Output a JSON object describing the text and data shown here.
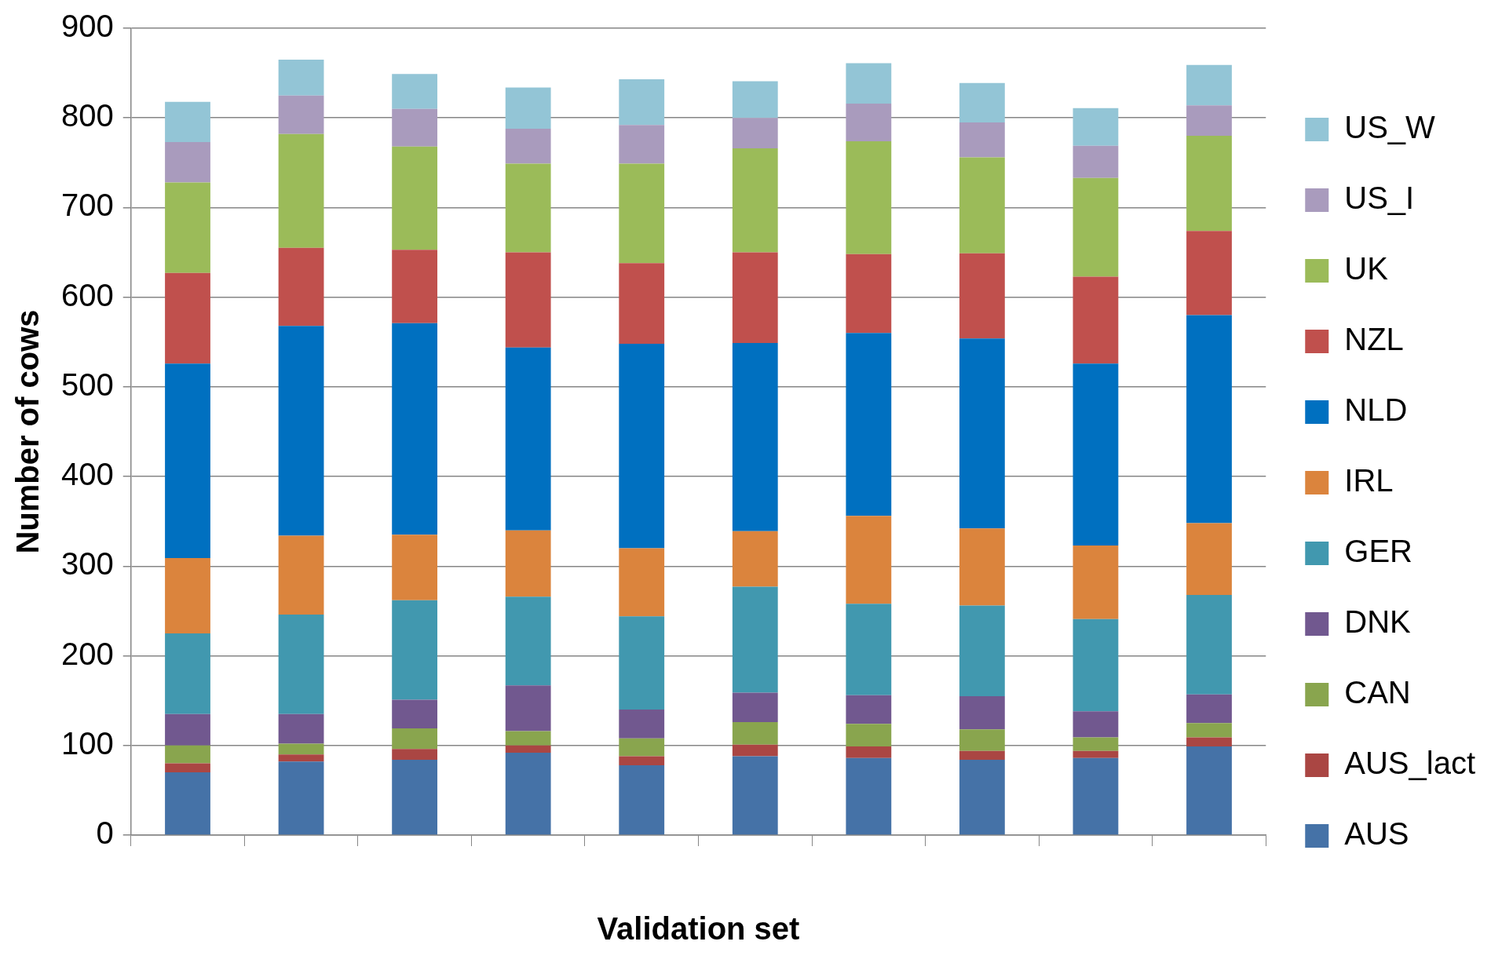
{
  "chart_data": {
    "type": "bar",
    "stacked": true,
    "xlabel": "Validation set",
    "ylabel": "Number of cows",
    "categories": [
      null,
      null,
      null,
      null,
      null,
      null,
      null,
      null,
      null,
      null
    ],
    "ylim": [
      0,
      900
    ],
    "yticks": [
      0,
      100,
      200,
      300,
      400,
      500,
      600,
      700,
      800,
      900
    ],
    "grid": "y",
    "legend": "right",
    "series": [
      {
        "name": "AUS",
        "color": "#4572a7",
        "values": [
          70,
          82,
          84,
          92,
          78,
          88,
          86,
          84,
          86,
          99
        ]
      },
      {
        "name": "AUS_lact",
        "color": "#aa4643",
        "values": [
          10,
          8,
          12,
          8,
          10,
          13,
          13,
          10,
          8,
          10
        ]
      },
      {
        "name": "CAN",
        "color": "#89a54e",
        "values": [
          20,
          12,
          23,
          16,
          20,
          25,
          25,
          24,
          15,
          16
        ]
      },
      {
        "name": "DNK",
        "color": "#71588f",
        "values": [
          35,
          33,
          32,
          51,
          32,
          33,
          32,
          37,
          29,
          32
        ]
      },
      {
        "name": "GER",
        "color": "#4198af",
        "values": [
          90,
          111,
          111,
          99,
          104,
          118,
          102,
          101,
          103,
          111
        ]
      },
      {
        "name": "IRL",
        "color": "#db843d",
        "values": [
          84,
          88,
          73,
          74,
          76,
          62,
          98,
          86,
          82,
          80
        ]
      },
      {
        "name": "NLD",
        "color": "#0070c0",
        "values": [
          217,
          234,
          236,
          204,
          228,
          210,
          204,
          212,
          203,
          232
        ]
      },
      {
        "name": "NZL",
        "color": "#c0504d",
        "values": [
          101,
          87,
          82,
          106,
          90,
          101,
          88,
          95,
          97,
          94
        ]
      },
      {
        "name": "UK",
        "color": "#9bbb59",
        "values": [
          101,
          127,
          115,
          99,
          111,
          116,
          126,
          107,
          110,
          106
        ]
      },
      {
        "name": "US_I",
        "color": "#a99bbd",
        "values": [
          45,
          43,
          42,
          39,
          43,
          34,
          42,
          39,
          36,
          34
        ]
      },
      {
        "name": "US_W",
        "color": "#93c5d6",
        "values": [
          45,
          40,
          39,
          46,
          51,
          41,
          45,
          44,
          42,
          45
        ]
      }
    ]
  }
}
